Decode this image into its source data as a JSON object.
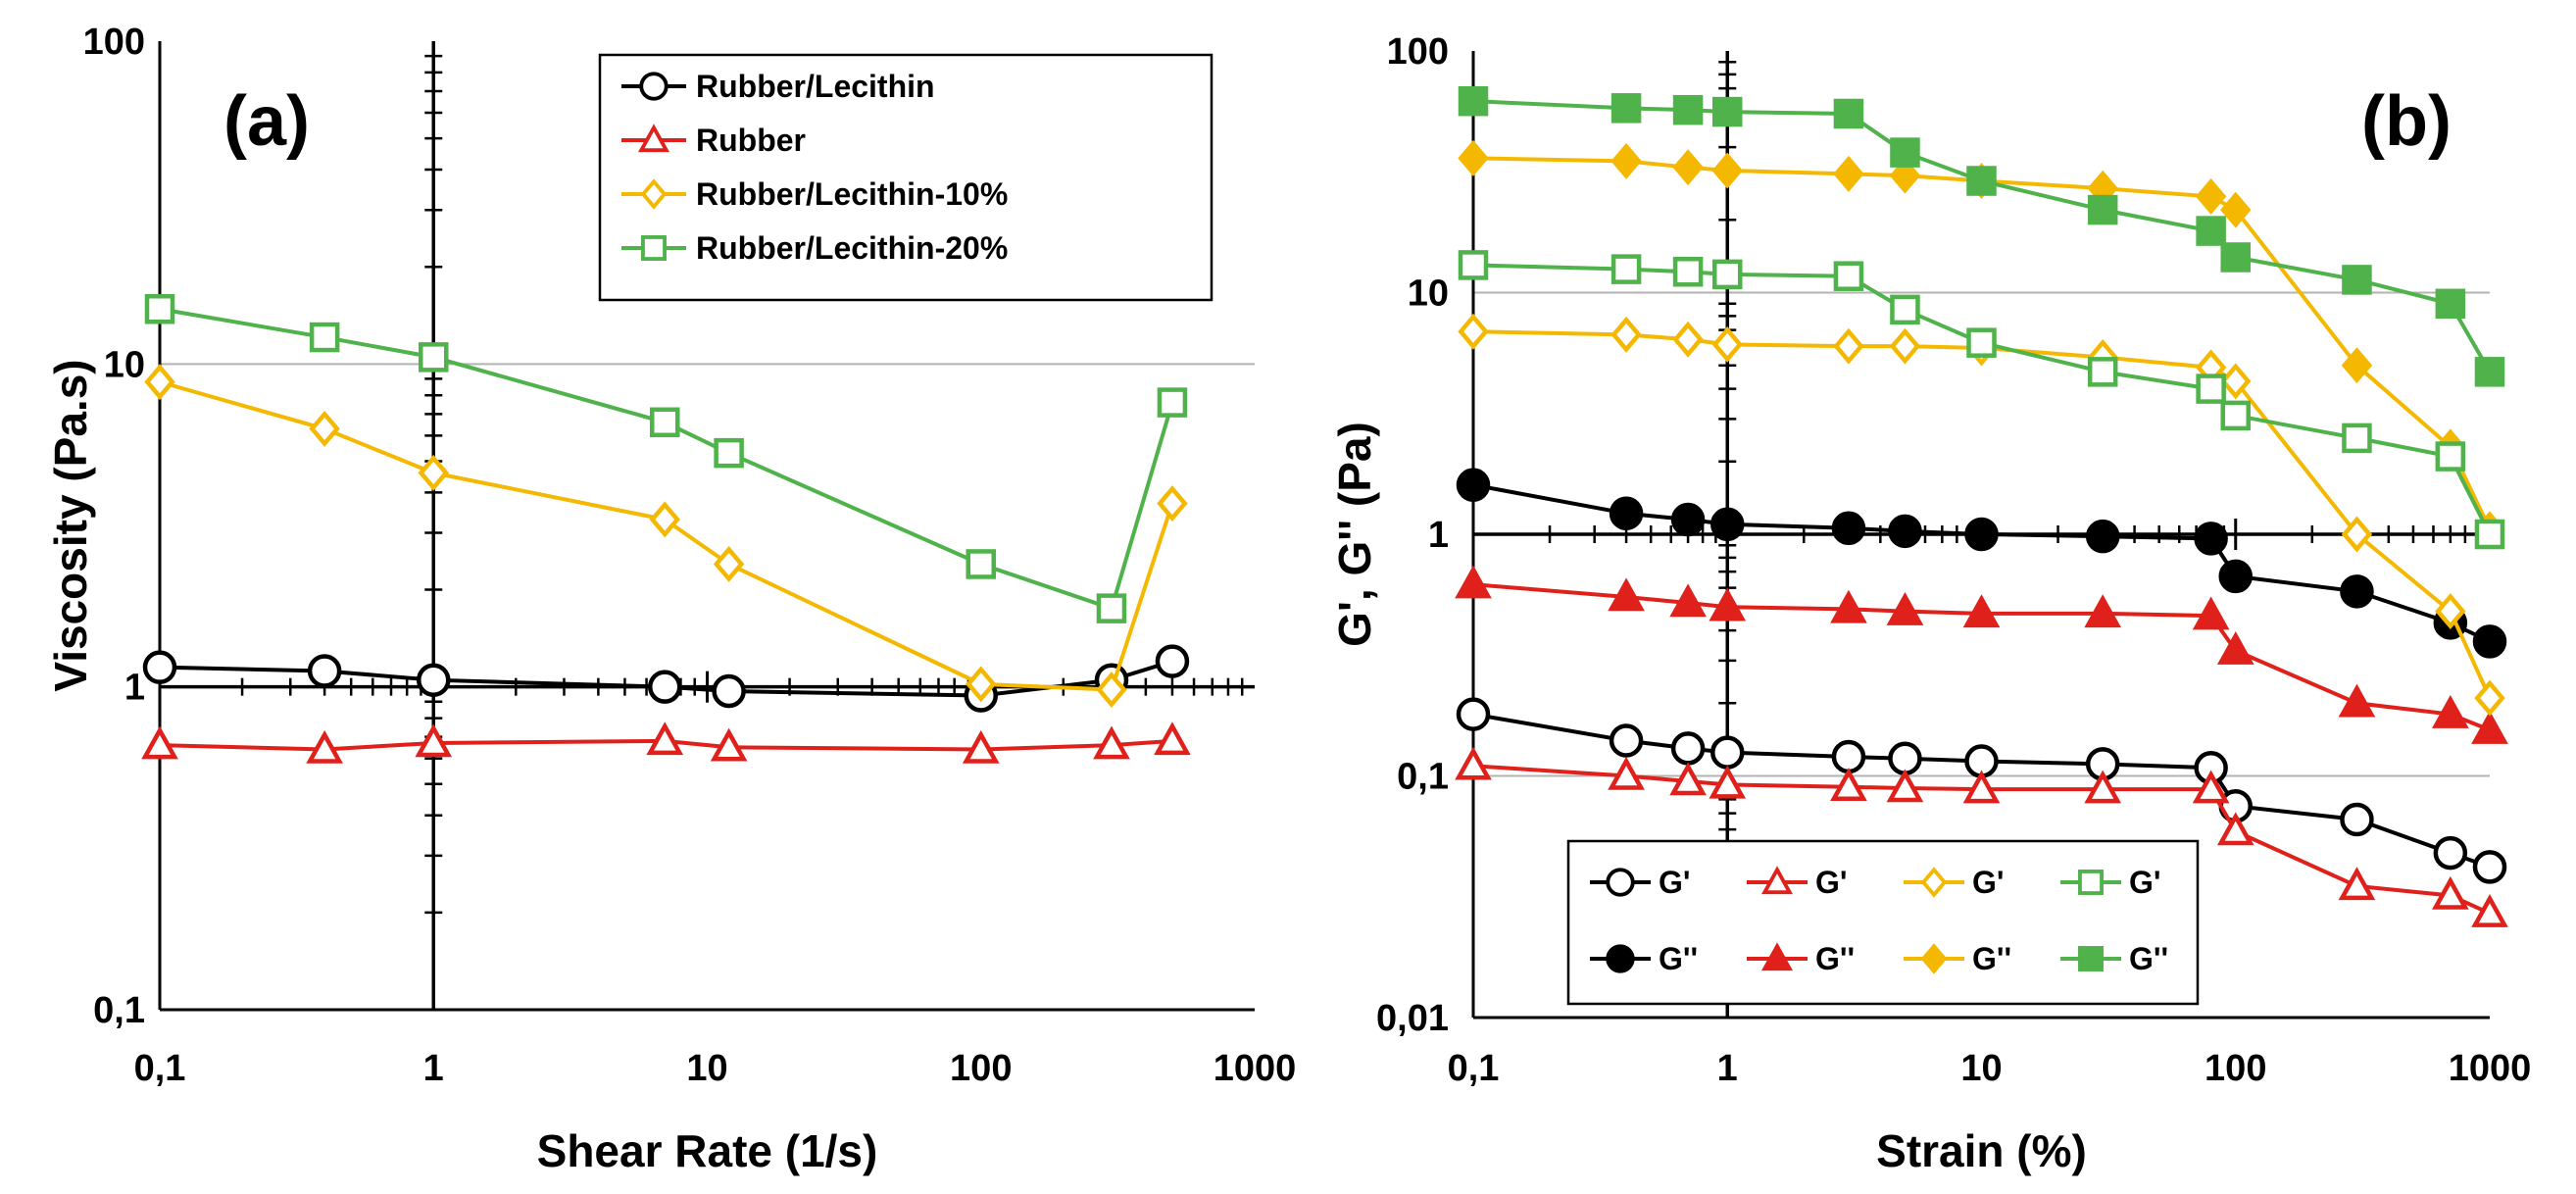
{
  "colors": {
    "black": "#000000",
    "red": "#e0201b",
    "orange": "#f5b800",
    "green": "#4fb24a",
    "grid": "#b3b3b3"
  },
  "chart_data": [
    {
      "type": "line",
      "panel_label": "(a)",
      "xscale": "log",
      "yscale": "log",
      "xlabel": "Shear Rate (1/s)",
      "ylabel": "Viscosity (Pa.s)",
      "xlim": [
        0.1,
        1000
      ],
      "ylim": [
        0.1,
        100
      ],
      "xticks": [
        "0,1",
        "1",
        "10",
        "100",
        "1000"
      ],
      "yticks": [
        "0,1",
        "1",
        "10",
        "100"
      ],
      "legend_position": "top-right",
      "series": [
        {
          "name": "Rubber/Lecithin",
          "color": "black",
          "marker": "circle",
          "fill": "open",
          "x": [
            0.1,
            0.4,
            1,
            7,
            12,
            100,
            300,
            500
          ],
          "y": [
            1.15,
            1.12,
            1.05,
            1.0,
            0.97,
            0.94,
            1.05,
            1.2
          ]
        },
        {
          "name": "Rubber",
          "color": "red",
          "marker": "triangle",
          "fill": "open",
          "x": [
            0.1,
            0.4,
            1,
            7,
            12,
            100,
            300,
            500
          ],
          "y": [
            0.66,
            0.64,
            0.67,
            0.68,
            0.65,
            0.64,
            0.66,
            0.68
          ]
        },
        {
          "name": "Rubber/Lecithin-10%",
          "color": "orange",
          "marker": "diamond",
          "fill": "open",
          "x": [
            0.1,
            0.4,
            1,
            7,
            12,
            100,
            300,
            500
          ],
          "y": [
            8.8,
            6.3,
            4.6,
            3.3,
            2.4,
            1.02,
            0.98,
            3.7
          ]
        },
        {
          "name": "Rubber/Lecithin-20%",
          "color": "green",
          "marker": "square",
          "fill": "open",
          "x": [
            0.1,
            0.4,
            1,
            7,
            12,
            100,
            300,
            500
          ],
          "y": [
            14.8,
            12.1,
            10.5,
            6.6,
            5.3,
            2.4,
            1.75,
            7.6
          ]
        }
      ]
    },
    {
      "type": "line",
      "panel_label": "(b)",
      "xscale": "log",
      "yscale": "log",
      "xlabel": "Strain (%)",
      "ylabel": "G', G'' (Pa)",
      "xlim": [
        0.1,
        1000
      ],
      "ylim": [
        0.01,
        100
      ],
      "xticks": [
        "0,1",
        "1",
        "10",
        "100",
        "1000"
      ],
      "yticks": [
        "0,01",
        "0,1",
        "1",
        "10",
        "100"
      ],
      "legend_position": "bottom-left",
      "series": [
        {
          "name": "G'",
          "color": "black",
          "marker": "circle",
          "fill": "open",
          "x": [
            0.1,
            0.4,
            0.7,
            1,
            3,
            5,
            10,
            30,
            80,
            100,
            300,
            700,
            1000
          ],
          "y": [
            0.18,
            0.14,
            0.13,
            0.125,
            0.12,
            0.118,
            0.115,
            0.112,
            0.108,
            0.075,
            0.066,
            0.048,
            0.042
          ]
        },
        {
          "name": "G''",
          "color": "black",
          "marker": "circle",
          "fill": "filled",
          "x": [
            0.1,
            0.4,
            0.7,
            1,
            3,
            5,
            10,
            30,
            80,
            100,
            300,
            700,
            1000
          ],
          "y": [
            1.6,
            1.22,
            1.15,
            1.1,
            1.06,
            1.03,
            1.0,
            0.98,
            0.96,
            0.67,
            0.58,
            0.43,
            0.36
          ]
        },
        {
          "name": "G'",
          "color": "red",
          "marker": "triangle",
          "fill": "open",
          "x": [
            0.1,
            0.4,
            0.7,
            1,
            3,
            5,
            10,
            30,
            80,
            100,
            300,
            700,
            1000
          ],
          "y": [
            0.11,
            0.1,
            0.095,
            0.092,
            0.09,
            0.089,
            0.088,
            0.088,
            0.088,
            0.059,
            0.035,
            0.032,
            0.027
          ]
        },
        {
          "name": "G''",
          "color": "red",
          "marker": "triangle",
          "fill": "filled",
          "x": [
            0.1,
            0.4,
            0.7,
            1,
            3,
            5,
            10,
            30,
            80,
            100,
            300,
            700,
            1000
          ],
          "y": [
            0.62,
            0.55,
            0.52,
            0.5,
            0.49,
            0.48,
            0.47,
            0.47,
            0.46,
            0.33,
            0.2,
            0.18,
            0.155
          ]
        },
        {
          "name": "G'",
          "color": "orange",
          "marker": "diamond",
          "fill": "open",
          "x": [
            0.1,
            0.4,
            0.7,
            1,
            3,
            5,
            10,
            30,
            80,
            100,
            300,
            700,
            1000
          ],
          "y": [
            6.9,
            6.7,
            6.4,
            6.1,
            6.0,
            6.0,
            5.9,
            5.4,
            4.9,
            4.3,
            1.0,
            0.48,
            0.21
          ]
        },
        {
          "name": "G''",
          "color": "orange",
          "marker": "diamond",
          "fill": "filled",
          "x": [
            0.1,
            0.4,
            0.7,
            1,
            3,
            5,
            10,
            30,
            80,
            100,
            300,
            700,
            1000
          ],
          "y": [
            36,
            35,
            33,
            32,
            31,
            30.5,
            29,
            27,
            25,
            22,
            5.0,
            2.3,
            1.05
          ]
        },
        {
          "name": "G'",
          "color": "green",
          "marker": "square",
          "fill": "open",
          "x": [
            0.1,
            0.4,
            0.7,
            1,
            3,
            5,
            10,
            30,
            80,
            100,
            300,
            700,
            1000
          ],
          "y": [
            13,
            12.5,
            12.2,
            11.9,
            11.7,
            8.5,
            6.2,
            4.7,
            4.0,
            3.1,
            2.5,
            2.1,
            1.0
          ]
        },
        {
          "name": "G''",
          "color": "green",
          "marker": "square",
          "fill": "filled",
          "x": [
            0.1,
            0.4,
            0.7,
            1,
            3,
            5,
            10,
            30,
            80,
            100,
            300,
            700,
            1000
          ],
          "y": [
            62,
            58,
            57,
            56,
            55,
            38,
            29,
            22,
            18,
            14,
            11.3,
            9.0,
            4.7
          ]
        }
      ]
    }
  ]
}
